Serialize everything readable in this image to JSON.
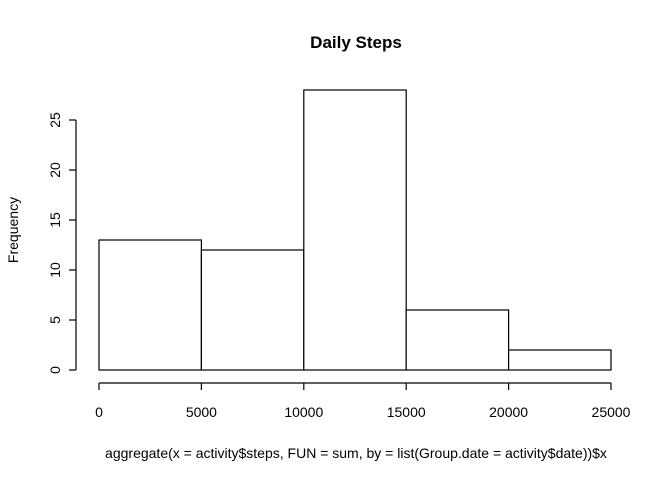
{
  "chart_data": {
    "type": "bar",
    "title": "Daily Steps",
    "xlabel": "aggregate(x = activity$steps, FUN = sum, by = list(Group.date = activity$date))$x",
    "ylabel": "Frequency",
    "bins": [
      {
        "from": 0,
        "to": 5000,
        "count": 13
      },
      {
        "from": 5000,
        "to": 10000,
        "count": 12
      },
      {
        "from": 10000,
        "to": 15000,
        "count": 28
      },
      {
        "from": 15000,
        "to": 20000,
        "count": 6
      },
      {
        "from": 20000,
        "to": 25000,
        "count": 2
      }
    ],
    "xlim": [
      0,
      25000
    ],
    "ylim": [
      0,
      28
    ],
    "x_ticks": [
      "0",
      "5000",
      "10000",
      "15000",
      "20000",
      "25000"
    ],
    "y_ticks": [
      "0",
      "5",
      "10",
      "15",
      "20",
      "25"
    ],
    "grid": false,
    "legend": "none"
  }
}
